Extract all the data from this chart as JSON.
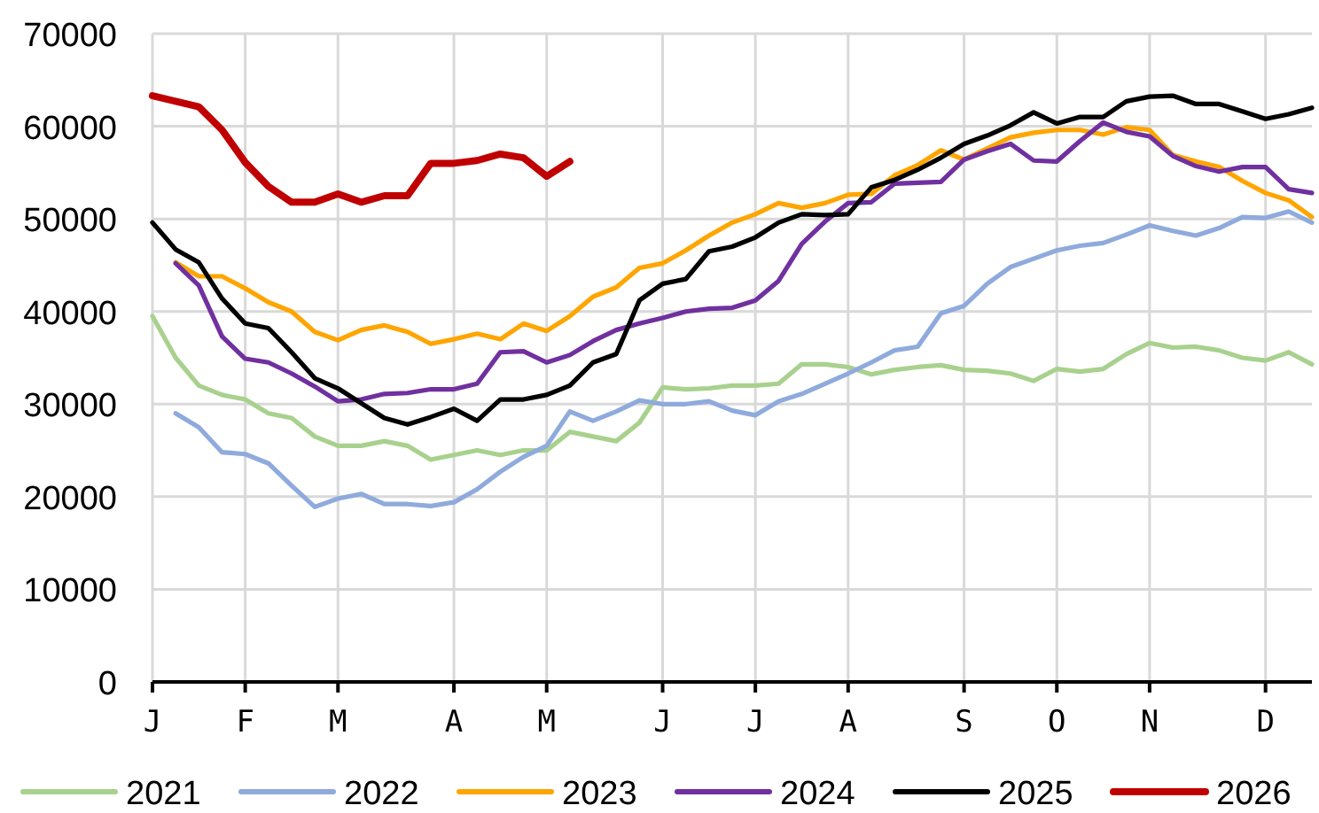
{
  "chart_data": {
    "type": "line",
    "ylim": [
      0,
      70000
    ],
    "yticks": [
      0,
      10000,
      20000,
      30000,
      40000,
      50000,
      60000,
      70000
    ],
    "grid": true,
    "legend": "bottom",
    "marker": "none",
    "line_style": "solid",
    "categories": [
      "J",
      null,
      null,
      null,
      "F",
      null,
      null,
      null,
      "M",
      null,
      null,
      null,
      null,
      "A",
      null,
      null,
      null,
      "M",
      null,
      null,
      null,
      null,
      "J",
      null,
      null,
      null,
      "J",
      null,
      null,
      null,
      "A",
      null,
      null,
      null,
      null,
      "S",
      null,
      null,
      null,
      "O",
      null,
      null,
      null,
      "N",
      null,
      null,
      null,
      null,
      "D",
      null,
      null
    ],
    "series": [
      {
        "name": "2021",
        "color": "#a9d18e",
        "values": [
          39500,
          35000,
          32000,
          31000,
          30500,
          29000,
          28500,
          26500,
          25500,
          25500,
          26000,
          25500,
          24000,
          24500,
          25000,
          24500,
          25000,
          25000,
          27000,
          26500,
          26000,
          28000,
          31800,
          31600,
          31700,
          32000,
          32000,
          32200,
          34300,
          34300,
          34000,
          33200,
          33700,
          34000,
          34200,
          33700,
          33600,
          33300,
          32500,
          33800,
          33500,
          33800,
          35400,
          36600,
          36100,
          36200,
          35800,
          35000,
          34700,
          35600,
          34300
        ]
      },
      {
        "name": "2022",
        "color": "#8faadc",
        "values": [
          null,
          29000,
          27500,
          24800,
          24600,
          23600,
          21200,
          18900,
          19800,
          20300,
          19200,
          19200,
          19000,
          19400,
          20800,
          22700,
          24300,
          25500,
          29200,
          28200,
          29200,
          30400,
          30000,
          30000,
          30300,
          29300,
          28800,
          30300,
          31100,
          32200,
          33300,
          34500,
          35800,
          36200,
          39800,
          40600,
          43000,
          44800,
          45700,
          46600,
          47100,
          47400,
          48300,
          49300,
          48700,
          48200,
          49000,
          50200,
          50100,
          50800,
          49600
        ]
      },
      {
        "name": "2023",
        "color": "#ffa500",
        "values": [
          null,
          45300,
          43800,
          43800,
          42500,
          41000,
          40000,
          37800,
          36900,
          38000,
          38500,
          37800,
          36500,
          37000,
          37600,
          37000,
          38700,
          37900,
          39500,
          41600,
          42600,
          44700,
          45200,
          46600,
          48200,
          49600,
          50500,
          51700,
          51200,
          51700,
          52600,
          52700,
          54700,
          55800,
          57400,
          56400,
          57600,
          58800,
          59300,
          59600,
          59600,
          59100,
          59900,
          59600,
          56900,
          56200,
          55600,
          54100,
          52800,
          52000,
          50200
        ]
      },
      {
        "name": "2024",
        "color": "#7030a0",
        "values": [
          null,
          45200,
          42800,
          37300,
          34900,
          34500,
          33300,
          31900,
          30300,
          30500,
          31100,
          31200,
          31600,
          31600,
          32200,
          35600,
          35700,
          34500,
          35300,
          36800,
          38000,
          38700,
          39300,
          40000,
          40300,
          40400,
          41200,
          43300,
          47300,
          49700,
          51700,
          51800,
          53800,
          53900,
          54000,
          56400,
          57300,
          58100,
          56300,
          56200,
          58400,
          60400,
          59400,
          58900,
          56800,
          55700,
          55100,
          55600,
          55600,
          53200,
          52800
        ]
      },
      {
        "name": "2025",
        "color": "#000000",
        "values": [
          49600,
          46700,
          45300,
          41400,
          38700,
          38200,
          35600,
          32800,
          31700,
          30100,
          28500,
          27800,
          28600,
          29500,
          28200,
          30500,
          30500,
          31000,
          32000,
          34500,
          35400,
          41200,
          43000,
          43500,
          46500,
          47000,
          48000,
          49600,
          50500,
          50400,
          50500,
          53400,
          54200,
          55300,
          56600,
          58100,
          59000,
          60100,
          61500,
          60300,
          61000,
          61000,
          62700,
          63200,
          63300,
          62400,
          62400,
          61600,
          60800,
          61300,
          62000
        ]
      },
      {
        "name": "2026",
        "color": "#c00000",
        "values": [
          63300,
          62700,
          62100,
          59600,
          56100,
          53500,
          51800,
          51800,
          52700,
          51800,
          52500,
          52500,
          56000,
          56000,
          56300,
          57000,
          56600,
          54600,
          56200,
          null,
          null,
          null,
          null,
          null,
          null,
          null,
          null,
          null,
          null,
          null,
          null,
          null,
          null,
          null,
          null,
          null,
          null,
          null,
          null,
          null,
          null,
          null,
          null,
          null,
          null,
          null,
          null,
          null,
          null,
          null,
          null
        ]
      }
    ]
  }
}
